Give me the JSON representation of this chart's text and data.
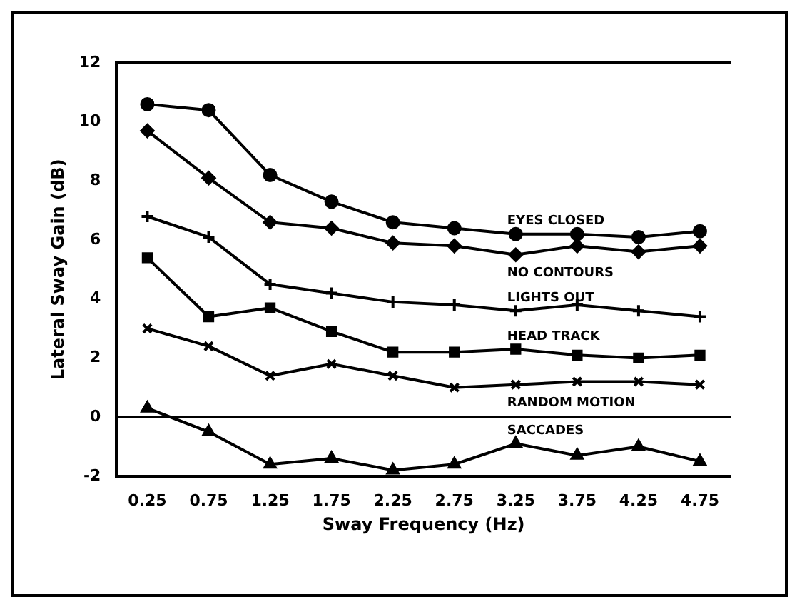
{
  "chart_data": {
    "type": "line",
    "xlabel": "Sway Frequency (Hz)",
    "ylabel": "Lateral Sway Gain (dB)",
    "categories": [
      "0.25",
      "0.75",
      "1.25",
      "1.75",
      "2.25",
      "2.75",
      "3.25",
      "3.75",
      "4.25",
      "4.75"
    ],
    "ylim": [
      -2,
      12
    ],
    "yticks": [
      -2,
      0,
      2,
      4,
      6,
      8,
      10,
      12
    ],
    "grid": false,
    "legend": false,
    "ref_lines": [
      {
        "axis": "y",
        "value": 0,
        "color": "#000000"
      }
    ],
    "series": [
      {
        "name": "EYES CLOSED",
        "color": "#000000",
        "marker": "circle",
        "values": [
          10.6,
          10.4,
          8.2,
          7.3,
          6.6,
          6.4,
          6.2,
          6.2,
          6.1,
          6.3
        ]
      },
      {
        "name": "NO CONTOURS",
        "color": "#000000",
        "marker": "diamond",
        "values": [
          9.7,
          8.1,
          6.6,
          6.4,
          5.9,
          5.8,
          5.5,
          5.8,
          5.6,
          5.8
        ]
      },
      {
        "name": "LIGHTS OUT",
        "color": "#000000",
        "marker": "cross",
        "values": [
          6.8,
          6.1,
          4.5,
          4.2,
          3.9,
          3.8,
          3.6,
          3.8,
          3.6,
          3.4
        ]
      },
      {
        "name": "HEAD TRACK",
        "color": "#000000",
        "marker": "square",
        "values": [
          5.4,
          3.4,
          3.7,
          2.9,
          2.2,
          2.2,
          2.3,
          2.1,
          2.0,
          2.1
        ]
      },
      {
        "name": "RANDOM MOTION",
        "color": "#000000",
        "marker": "x",
        "values": [
          3.0,
          2.4,
          1.4,
          1.8,
          1.4,
          1.0,
          1.1,
          1.2,
          1.2,
          1.1
        ]
      },
      {
        "name": "SACCADES",
        "color": "#000000",
        "marker": "triangle",
        "values": [
          0.3,
          -0.5,
          -1.6,
          -1.4,
          -1.8,
          -1.6,
          -0.9,
          -1.3,
          -1.0,
          -1.5
        ]
      }
    ]
  }
}
